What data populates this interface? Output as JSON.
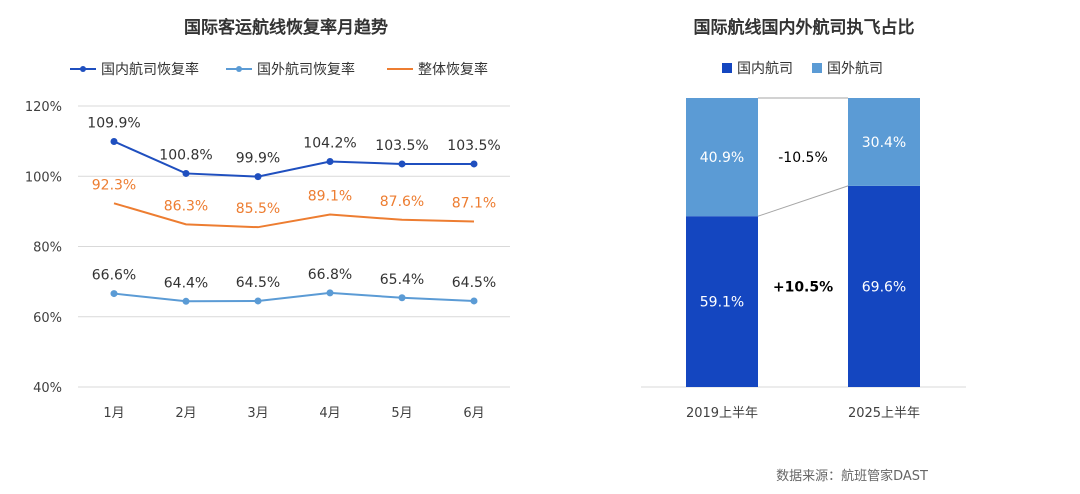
{
  "chart_data": [
    {
      "type": "line",
      "title": "国际客运航线恢复率月趋势",
      "categories": [
        "1月",
        "2月",
        "3月",
        "4月",
        "5月",
        "6月"
      ],
      "ylim": [
        40,
        120
      ],
      "yticks": [
        "40%",
        "60%",
        "80%",
        "100%",
        "120%"
      ],
      "ytick_values": [
        40,
        60,
        80,
        100,
        120
      ],
      "grid": true,
      "legend_position": "top",
      "series": [
        {
          "name": "国内航司恢复率",
          "color": "#1f4fbf",
          "values": [
            109.9,
            100.8,
            99.9,
            104.2,
            103.5,
            103.5
          ],
          "labels": [
            "109.9%",
            "100.8%",
            "99.9%",
            "104.2%",
            "103.5%",
            "103.5%"
          ],
          "label_color": "#333333",
          "marker": true
        },
        {
          "name": "国外航司恢复率",
          "color": "#5b9bd5",
          "values": [
            66.6,
            64.4,
            64.5,
            66.8,
            65.4,
            64.5
          ],
          "labels": [
            "66.6%",
            "64.4%",
            "64.5%",
            "66.8%",
            "65.4%",
            "64.5%"
          ],
          "label_color": "#333333",
          "marker": true
        },
        {
          "name": "整体恢复率",
          "color": "#ed7d31",
          "values": [
            92.3,
            86.3,
            85.5,
            89.1,
            87.6,
            87.1
          ],
          "labels": [
            "92.3%",
            "86.3%",
            "85.5%",
            "89.1%",
            "87.6%",
            "87.1%"
          ],
          "label_color": "#ed7d31",
          "marker": false
        }
      ]
    },
    {
      "type": "bar",
      "stacked": true,
      "title": "国际航线国内外航司执飞占比",
      "categories": [
        "2019上半年",
        "2025上半年"
      ],
      "legend_position": "top",
      "series": [
        {
          "name": "国内航司",
          "color": "#1446c0",
          "values": [
            59.1,
            69.6
          ],
          "labels": [
            "59.1%",
            "69.6%"
          ]
        },
        {
          "name": "国外航司",
          "color": "#5b9bd5",
          "values": [
            40.9,
            30.4
          ],
          "labels": [
            "40.9%",
            "30.4%"
          ]
        }
      ],
      "annotations": {
        "change_foreign": "-10.5%",
        "change_domestic": "+10.5%"
      }
    }
  ],
  "footer": {
    "source": "数据来源：航班管家DAST"
  }
}
